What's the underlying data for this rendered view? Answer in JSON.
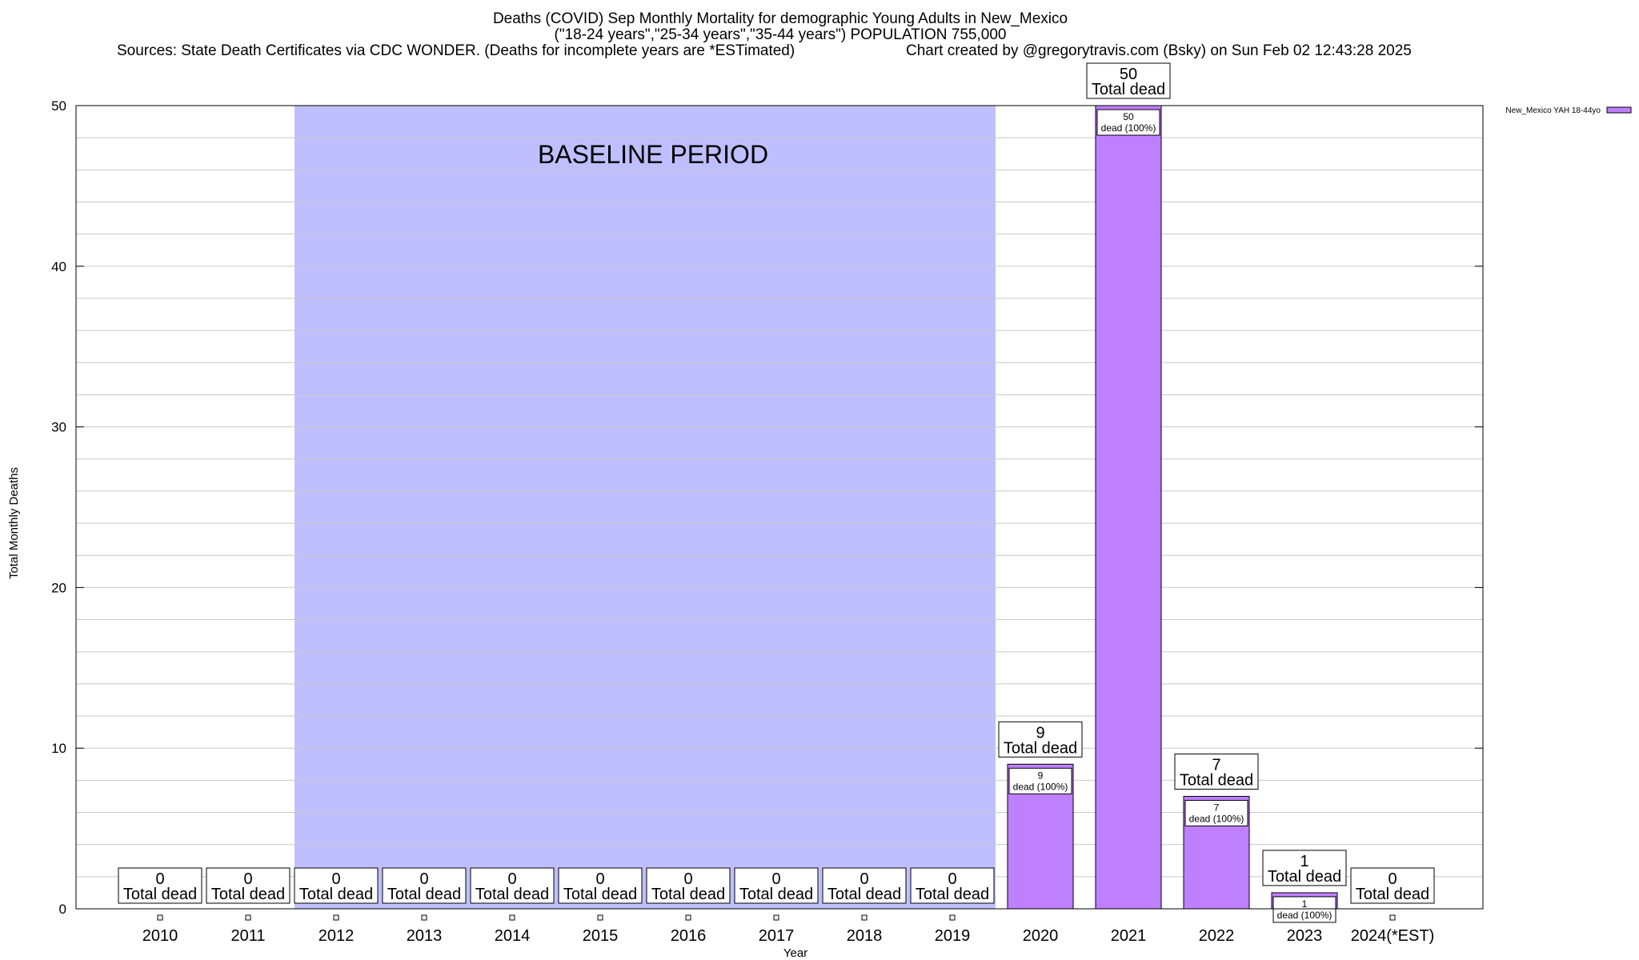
{
  "chart_data": {
    "type": "bar",
    "title": "Deaths (COVID) Sep Monthly Mortality for demographic Young Adults in New_Mexico",
    "subtitle": "(\"18-24 years\",\"25-34 years\",\"35-44 years\") POPULATION 755,000",
    "sources": "Sources: State Death Certificates via CDC WONDER. (Deaths for incomplete years are *ESTimated)",
    "credit": "Chart created by @gregorytravis.com (Bsky) on Sun Feb 02 12:43:28 2025",
    "xlabel": "Year",
    "ylabel": "Total Monthly Deaths",
    "ylim": [
      0,
      50
    ],
    "yticks": [
      0,
      10,
      20,
      30,
      40,
      50
    ],
    "minor_grid_step": 2,
    "grid": true,
    "legend_position": "top-right",
    "categories": [
      "2010",
      "2011",
      "2012",
      "2013",
      "2014",
      "2015",
      "2016",
      "2017",
      "2018",
      "2019",
      "2020",
      "2021",
      "2022",
      "2023",
      "2024(*EST)"
    ],
    "series": [
      {
        "name": "New_Mexico YAH 18-44yo",
        "color": "#bf80ff",
        "values": [
          0,
          0,
          0,
          0,
          0,
          0,
          0,
          0,
          0,
          0,
          9,
          50,
          7,
          1,
          0
        ]
      }
    ],
    "total_label": "Total dead",
    "inner_label_suffix": "dead (100%)",
    "baseline": {
      "label": "BASELINE PERIOD",
      "from": "2012",
      "to": "2019",
      "color": "#bfbfff"
    }
  }
}
